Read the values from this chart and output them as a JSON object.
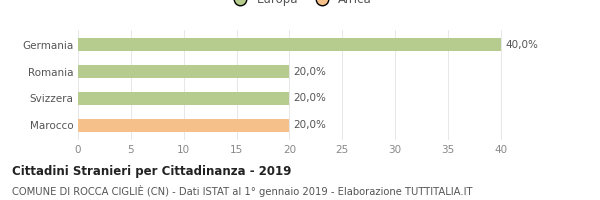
{
  "categories": [
    "Germania",
    "Romania",
    "Svizzera",
    "Marocco"
  ],
  "values": [
    40,
    20,
    20,
    20
  ],
  "bar_colors": [
    "#b5cc8e",
    "#b5cc8e",
    "#b5cc8e",
    "#f5c08a"
  ],
  "labels": [
    "40,0%",
    "20,0%",
    "20,0%",
    "20,0%"
  ],
  "xlim": [
    0,
    42
  ],
  "xticks": [
    0,
    5,
    10,
    15,
    20,
    25,
    30,
    35,
    40
  ],
  "legend_items": [
    {
      "label": "Europa",
      "color": "#b5cc8e"
    },
    {
      "label": "Africa",
      "color": "#f5c08a"
    }
  ],
  "title": "Cittadini Stranieri per Cittadinanza - 2019",
  "subtitle": "COMUNE DI ROCCA CIGLIÈ (CN) - Dati ISTAT al 1° gennaio 2019 - Elaborazione TUTTITALIA.IT",
  "title_fontsize": 8.5,
  "subtitle_fontsize": 7.2,
  "background_color": "#ffffff",
  "bar_height": 0.5,
  "label_fontsize": 7.5,
  "ytick_fontsize": 7.5,
  "xtick_fontsize": 7.5,
  "legend_fontsize": 8.5,
  "tick_color": "#888888",
  "label_color": "#555555",
  "grid_color": "#dddddd"
}
